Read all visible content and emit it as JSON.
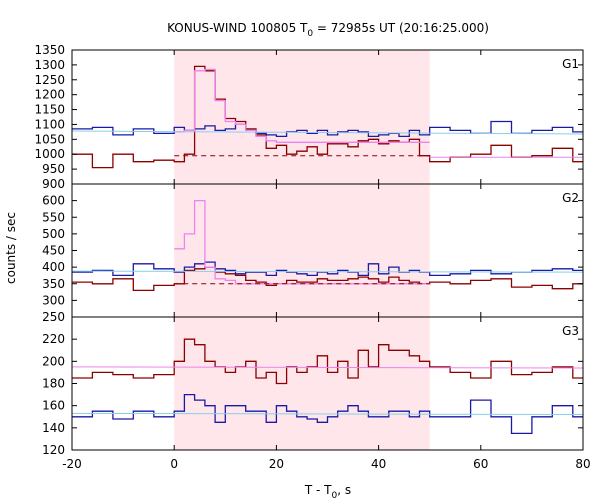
{
  "title": {
    "prefix": "KONUS-WIND 100805 T",
    "sub": "0",
    "suffix": " = 72985s UT (20:16:25.000)"
  },
  "axes": {
    "ylabel": "counts / sec",
    "xlabel_prefix": "T - T",
    "xlabel_sub": "0",
    "xlabel_suffix": ", s"
  },
  "colors": {
    "dark_red": "#8b0000",
    "blue": "#1a1aa6",
    "cyan": "#87ceeb",
    "pink": "#ee82ee",
    "shade": "#ffe6ea"
  },
  "chart_data": [
    {
      "type": "line",
      "panel": "G1",
      "label": "G1",
      "xlim": [
        -20,
        80
      ],
      "ylim": [
        900,
        1350
      ],
      "yticks": [
        900,
        950,
        1000,
        1050,
        1100,
        1150,
        1200,
        1250,
        1300,
        1350
      ],
      "xticks": [
        -20,
        0,
        20,
        40,
        60,
        80
      ],
      "shaded_interval": [
        0,
        50
      ],
      "grid": false,
      "series": [
        {
          "color_key": "dark_red",
          "style": "step",
          "x": [
            -20,
            -16,
            -12,
            -8,
            -4,
            0,
            2,
            4,
            6,
            8,
            10,
            12,
            14,
            16,
            18,
            20,
            22,
            24,
            26,
            28,
            30,
            32,
            34,
            36,
            38,
            40,
            42,
            44,
            46,
            48,
            50,
            54,
            58,
            62,
            66,
            70,
            74,
            78,
            80
          ],
          "y": [
            1000,
            955,
            1000,
            975,
            980,
            975,
            1000,
            1295,
            1280,
            1185,
            1120,
            1110,
            1085,
            1065,
            1020,
            1030,
            1000,
            1010,
            1025,
            1000,
            1035,
            1035,
            1025,
            1045,
            1050,
            1035,
            1045,
            1040,
            1050,
            995,
            975,
            990,
            1000,
            1030,
            990,
            995,
            1020,
            975,
            980
          ]
        },
        {
          "color_key": "blue",
          "style": "step",
          "x": [
            -20,
            -16,
            -12,
            -8,
            -4,
            0,
            2,
            4,
            6,
            8,
            10,
            12,
            14,
            16,
            18,
            20,
            22,
            24,
            26,
            28,
            30,
            32,
            34,
            36,
            38,
            40,
            42,
            44,
            46,
            48,
            50,
            54,
            58,
            62,
            66,
            70,
            74,
            78,
            80
          ],
          "y": [
            1085,
            1090,
            1065,
            1085,
            1070,
            1090,
            1080,
            1085,
            1095,
            1080,
            1085,
            1100,
            1080,
            1070,
            1065,
            1060,
            1075,
            1080,
            1070,
            1080,
            1065,
            1075,
            1080,
            1075,
            1060,
            1065,
            1070,
            1060,
            1080,
            1065,
            1090,
            1080,
            1070,
            1110,
            1070,
            1080,
            1090,
            1075,
            1085
          ]
        },
        {
          "color_key": "pink",
          "style": "step",
          "x": [
            0,
            2,
            4,
            6,
            8,
            10,
            12,
            14,
            16,
            18,
            20,
            22,
            24,
            26,
            28,
            30,
            32,
            34,
            36,
            38,
            40,
            42,
            44,
            46,
            48,
            50
          ],
          "y": [
            1075,
            1080,
            1280,
            1285,
            1180,
            1110,
            1100,
            1080,
            1060,
            1045,
            1040,
            1040,
            1040,
            1040,
            1040,
            1040,
            1040,
            1040,
            1040,
            1040,
            1040,
            1040,
            1040,
            1040,
            1040,
            1040
          ]
        },
        {
          "color_key": "cyan",
          "style": "fit",
          "x": [
            -20,
            80
          ],
          "y": [
            1078,
            1068
          ]
        },
        {
          "color_key": "pink",
          "style": "fit",
          "x": [
            50,
            80
          ],
          "y": [
            990,
            990
          ]
        },
        {
          "color_key": "dark_red",
          "style": "dashed",
          "x": [
            0,
            50
          ],
          "y": [
            995,
            995
          ]
        }
      ]
    },
    {
      "type": "line",
      "panel": "G2",
      "label": "G2",
      "xlim": [
        -20,
        80
      ],
      "ylim": [
        250,
        650
      ],
      "yticks": [
        250,
        300,
        350,
        400,
        450,
        500,
        550,
        600
      ],
      "xticks": [
        -20,
        0,
        20,
        40,
        60,
        80
      ],
      "shaded_interval": [
        0,
        50
      ],
      "grid": false,
      "series": [
        {
          "color_key": "dark_red",
          "style": "step",
          "x": [
            -20,
            -16,
            -12,
            -8,
            -4,
            0,
            2,
            4,
            6,
            8,
            10,
            12,
            14,
            16,
            18,
            20,
            22,
            24,
            26,
            28,
            30,
            32,
            34,
            36,
            38,
            40,
            42,
            44,
            46,
            48,
            50,
            54,
            58,
            62,
            66,
            70,
            74,
            78,
            80
          ],
          "y": [
            355,
            350,
            365,
            330,
            345,
            350,
            390,
            395,
            400,
            385,
            380,
            375,
            360,
            355,
            345,
            350,
            360,
            355,
            355,
            365,
            360,
            360,
            365,
            370,
            365,
            355,
            370,
            360,
            355,
            350,
            355,
            350,
            360,
            365,
            340,
            345,
            335,
            350,
            355
          ]
        },
        {
          "color_key": "blue",
          "style": "step",
          "x": [
            -20,
            -16,
            -12,
            -8,
            -4,
            0,
            2,
            4,
            6,
            8,
            10,
            12,
            14,
            16,
            18,
            20,
            22,
            24,
            26,
            28,
            30,
            32,
            34,
            36,
            38,
            40,
            42,
            44,
            46,
            48,
            50,
            54,
            58,
            62,
            66,
            70,
            74,
            78,
            80
          ],
          "y": [
            385,
            390,
            375,
            410,
            395,
            385,
            400,
            410,
            415,
            395,
            390,
            380,
            385,
            385,
            375,
            390,
            385,
            380,
            375,
            385,
            380,
            390,
            385,
            375,
            410,
            380,
            400,
            385,
            390,
            385,
            375,
            380,
            390,
            380,
            385,
            390,
            395,
            390,
            385
          ]
        },
        {
          "color_key": "pink",
          "style": "step",
          "x": [
            0,
            2,
            4,
            6,
            8,
            10,
            12,
            14,
            16,
            18,
            20,
            22,
            24,
            26,
            28,
            30,
            32,
            34,
            36,
            38,
            40,
            42,
            44,
            46,
            48,
            50
          ],
          "y": [
            455,
            500,
            600,
            400,
            365,
            360,
            350,
            350,
            350,
            350,
            350,
            350,
            350,
            350,
            350,
            350,
            350,
            350,
            350,
            350,
            350,
            350,
            350,
            350,
            350,
            350
          ]
        },
        {
          "color_key": "cyan",
          "style": "fit",
          "x": [
            -20,
            80
          ],
          "y": [
            388,
            385
          ]
        },
        {
          "color_key": "dark_red",
          "style": "dashed",
          "x": [
            0,
            50
          ],
          "y": [
            350,
            350
          ]
        }
      ]
    },
    {
      "type": "line",
      "panel": "G3",
      "label": "G3",
      "xlim": [
        -20,
        80
      ],
      "ylim": [
        120,
        240
      ],
      "yticks": [
        120,
        140,
        160,
        180,
        200,
        220
      ],
      "xticks": [
        -20,
        0,
        20,
        40,
        60,
        80
      ],
      "shaded_interval": [
        0,
        50
      ],
      "grid": false,
      "series": [
        {
          "color_key": "dark_red",
          "style": "step",
          "x": [
            -20,
            -16,
            -12,
            -8,
            -4,
            0,
            2,
            4,
            6,
            8,
            10,
            12,
            14,
            16,
            18,
            20,
            22,
            24,
            26,
            28,
            30,
            32,
            34,
            36,
            38,
            40,
            42,
            44,
            46,
            48,
            50,
            54,
            58,
            62,
            66,
            70,
            74,
            78,
            80
          ],
          "y": [
            185,
            190,
            188,
            185,
            188,
            200,
            220,
            215,
            200,
            195,
            190,
            195,
            200,
            185,
            190,
            180,
            195,
            190,
            195,
            205,
            190,
            200,
            185,
            210,
            195,
            215,
            210,
            210,
            205,
            200,
            195,
            190,
            185,
            200,
            188,
            190,
            195,
            185,
            180
          ]
        },
        {
          "color_key": "blue",
          "style": "step",
          "x": [
            -20,
            -16,
            -12,
            -8,
            -4,
            0,
            2,
            4,
            6,
            8,
            10,
            12,
            14,
            16,
            18,
            20,
            22,
            24,
            26,
            28,
            30,
            32,
            34,
            36,
            38,
            40,
            42,
            44,
            46,
            48,
            50,
            54,
            58,
            62,
            66,
            70,
            74,
            78,
            80
          ],
          "y": [
            150,
            155,
            148,
            155,
            150,
            155,
            170,
            165,
            160,
            145,
            160,
            160,
            155,
            155,
            145,
            160,
            155,
            150,
            148,
            145,
            150,
            155,
            160,
            155,
            150,
            150,
            155,
            155,
            150,
            155,
            150,
            150,
            165,
            150,
            135,
            150,
            160,
            150,
            155
          ]
        },
        {
          "color_key": "cyan",
          "style": "fit",
          "x": [
            -20,
            80
          ],
          "y": [
            153,
            152
          ]
        },
        {
          "color_key": "pink",
          "style": "fit",
          "x": [
            -20,
            80
          ],
          "y": [
            195,
            194
          ]
        }
      ]
    }
  ]
}
